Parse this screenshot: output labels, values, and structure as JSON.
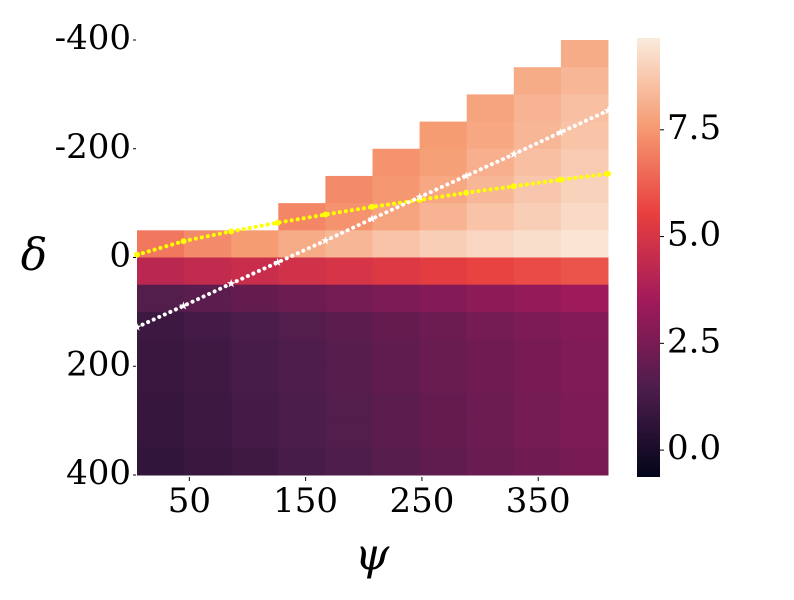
{
  "chart_data": {
    "type": "heatmap",
    "xlabel": "ψ",
    "ylabel": "δ",
    "xbins": [
      5,
      45.5,
      86,
      126.5,
      167,
      207.5,
      248,
      288.5,
      329,
      369.5,
      410
    ],
    "ybins": [
      -400,
      -350,
      -300,
      -250,
      -200,
      -150,
      -100,
      -50,
      0,
      50,
      100,
      150,
      200,
      250,
      300,
      350,
      400
    ],
    "z": [
      [
        null,
        null,
        null,
        null,
        null,
        null,
        null,
        null,
        null,
        8.0
      ],
      [
        null,
        null,
        null,
        null,
        null,
        null,
        null,
        null,
        8.0,
        8.3
      ],
      [
        null,
        null,
        null,
        null,
        null,
        null,
        null,
        7.8,
        8.2,
        8.5
      ],
      [
        null,
        null,
        null,
        null,
        null,
        null,
        7.6,
        7.9,
        8.3,
        8.6
      ],
      [
        null,
        null,
        null,
        null,
        null,
        7.4,
        7.7,
        8.1,
        8.5,
        8.8
      ],
      [
        null,
        null,
        null,
        null,
        7.2,
        7.5,
        7.9,
        8.3,
        8.7,
        9.0
      ],
      [
        null,
        null,
        null,
        7.1,
        7.4,
        7.8,
        8.2,
        8.6,
        8.9,
        9.2
      ],
      [
        6.8,
        7.2,
        7.6,
        8.0,
        8.3,
        8.6,
        8.9,
        9.1,
        9.3,
        9.5
      ],
      [
        4.2,
        4.4,
        4.6,
        4.8,
        5.0,
        5.2,
        5.4,
        5.6,
        5.8,
        6.0
      ],
      [
        1.6,
        1.8,
        2.0,
        2.2,
        2.4,
        2.6,
        2.8,
        3.0,
        3.2,
        3.4
      ],
      [
        1.0,
        1.2,
        1.4,
        1.6,
        1.8,
        2.0,
        2.2,
        2.4,
        2.6,
        2.8
      ],
      [
        0.9,
        1.1,
        1.3,
        1.5,
        1.7,
        1.9,
        2.1,
        2.3,
        2.5,
        2.7
      ],
      [
        0.9,
        1.1,
        1.3,
        1.5,
        1.7,
        1.9,
        2.1,
        2.3,
        2.5,
        2.7
      ],
      [
        0.8,
        1.0,
        1.2,
        1.4,
        1.6,
        1.8,
        2.0,
        2.2,
        2.4,
        2.6
      ],
      [
        0.8,
        1.0,
        1.2,
        1.4,
        1.6,
        1.8,
        2.0,
        2.2,
        2.4,
        2.6
      ],
      [
        0.7,
        0.9,
        1.1,
        1.3,
        1.5,
        1.7,
        1.9,
        2.1,
        2.3,
        2.5
      ]
    ],
    "colormap": [
      "#03051a",
      "#4c1d4b",
      "#a11a5b",
      "#e83f3f",
      "#f69c73",
      "#faebdd"
    ],
    "clim": [
      -0.63,
      9.65
    ],
    "cticks": [
      {
        "value": 0,
        "label": "0.0"
      },
      2.5,
      {
        "value": 5,
        "label": "5.0"
      },
      7.5
    ],
    "xlim": [
      5,
      410
    ],
    "xticks": [
      50,
      150,
      250,
      350
    ],
    "ylim": [
      -400,
      400
    ],
    "yticks": [
      -400,
      -200,
      0,
      200,
      400
    ],
    "y_inverted": true,
    "lines": [
      {
        "color": "#ffff00",
        "marker": "dot",
        "x": [
          5,
          45,
          86,
          126,
          167,
          207,
          248,
          288,
          329,
          369,
          410
        ],
        "values": [
          -5,
          -30,
          -48,
          -64,
          -79,
          -93,
          -106,
          -119,
          -131,
          -143,
          -154
        ]
      },
      {
        "color": "#ffffff",
        "marker": "star",
        "x": [
          5,
          45,
          86,
          126,
          167,
          207,
          248,
          288,
          329,
          369,
          410
        ],
        "values": [
          128,
          89,
          48,
          9,
          -31,
          -71,
          -111,
          -150,
          -190,
          -230,
          -270
        ]
      }
    ]
  }
}
